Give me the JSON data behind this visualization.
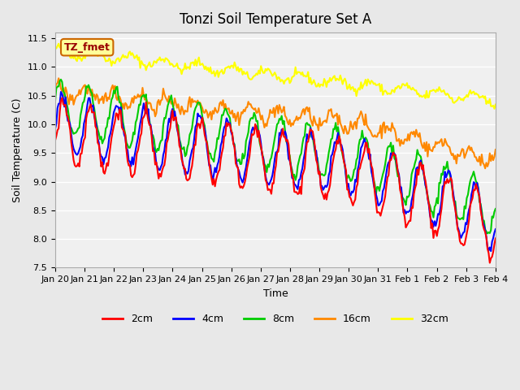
{
  "title": "Tonzi Soil Temperature Set A",
  "xlabel": "Time",
  "ylabel": "Soil Temperature (C)",
  "ylim": [
    7.5,
    11.6
  ],
  "annotation_text": "TZ_fmet",
  "annotation_bg": "#ffff99",
  "annotation_border": "#cc6600",
  "annotation_text_color": "#990000",
  "bg_color": "#e8e8e8",
  "plot_bg": "#f0f0f0",
  "legend_labels": [
    "2cm",
    "4cm",
    "8cm",
    "16cm",
    "32cm"
  ],
  "legend_colors": [
    "#ff0000",
    "#0000ff",
    "#00cc00",
    "#ff8800",
    "#ffff00"
  ],
  "line_width": 1.5,
  "yticks": [
    7.5,
    8.0,
    8.5,
    9.0,
    9.5,
    10.0,
    10.5,
    11.0,
    11.5
  ],
  "tick_labels": [
    "Jan 20",
    "Jan 21",
    "Jan 22",
    "Jan 23",
    "Jan 24",
    "Jan 25",
    "Jan 26",
    "Jan 27",
    "Jan 28",
    "Jan 29",
    "Jan 30",
    "Jan 31",
    "Feb 1",
    "Feb 2",
    "Feb 3",
    "Feb 4"
  ],
  "n_days": 16,
  "pts_per_day": 24
}
